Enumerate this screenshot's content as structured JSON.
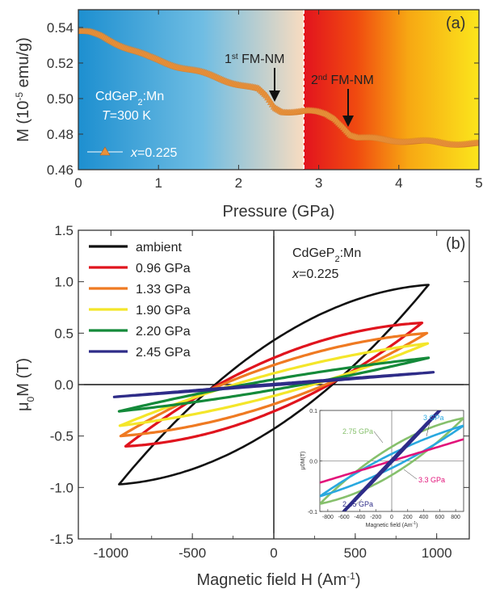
{
  "chart_data": [
    {
      "panel": "(a)",
      "type": "scatter",
      "xlabel": "Pressure (GPa)",
      "ylabel_main": "M (10",
      "ylabel_sup": "-5",
      "ylabel_tail": " emu/g)",
      "xlim": [
        0,
        5
      ],
      "ylim": [
        0.46,
        0.55
      ],
      "xticks": [
        "0",
        "1",
        "2",
        "3",
        "4",
        "5"
      ],
      "yticks": [
        "0.46",
        "0.48",
        "0.50",
        "0.52",
        "0.54"
      ],
      "sample_name": "CdGeP",
      "sample_sub": "2",
      "sample_dopant": ":Mn",
      "temperature_var": "T",
      "temperature_val": "=300 K",
      "legend_var": "x",
      "legend_val": "=0.225",
      "marker_color": "#e8913a",
      "transition_1": {
        "num": "1",
        "sup": "st",
        "label": " FM-NM",
        "pressure": 2.43
      },
      "transition_2": {
        "num": "2",
        "sup": "nd",
        "label": " FM-NM",
        "pressure": 3.37
      },
      "phase_boundary": 2.82,
      "x": [
        0.0,
        0.15,
        0.3,
        0.45,
        0.6,
        0.75,
        0.9,
        1.05,
        1.2,
        1.35,
        1.5,
        1.65,
        1.8,
        1.95,
        2.1,
        2.25,
        2.35,
        2.45,
        2.55,
        2.7,
        2.85,
        3.0,
        3.1,
        3.2,
        3.3,
        3.4,
        3.5,
        3.6,
        3.8,
        4.0,
        4.2,
        4.4,
        4.6,
        4.8,
        5.0
      ],
      "y": [
        0.538,
        0.537,
        0.535,
        0.532,
        0.529,
        0.526,
        0.523,
        0.521,
        0.519,
        0.517,
        0.515,
        0.513,
        0.511,
        0.509,
        0.507,
        0.505,
        0.501,
        0.495,
        0.493,
        0.493,
        0.493,
        0.492,
        0.491,
        0.489,
        0.485,
        0.48,
        0.478,
        0.4775,
        0.477,
        0.4765,
        0.476,
        0.4755,
        0.475,
        0.4748,
        0.4745
      ]
    },
    {
      "panel": "(b)",
      "type": "line",
      "xlabel": "Magnetic field H (Am",
      "xlabel_sup": "-1",
      "xlabel_tail": ")",
      "ylabel_main": "μ",
      "ylabel_sub": "0",
      "ylabel_tail": "M (T)",
      "xlim": [
        -1200,
        1200
      ],
      "ylim": [
        -1.5,
        1.5
      ],
      "xticks": [
        "-1000",
        "-500",
        "0",
        "500",
        "1000"
      ],
      "yticks": [
        "-1.5",
        "-1.0",
        "-0.5",
        "0.0",
        "0.5",
        "1.0",
        "1.5"
      ],
      "sample_name": "CdGeP",
      "sample_sub": "2",
      "sample_dopant": ":Mn",
      "composition_var": "x",
      "composition_val": "=0.225",
      "series": [
        {
          "name": "ambient",
          "color": "#111111",
          "hmax": 950,
          "mtip": 0.97,
          "hc": 380,
          "mr": 0.43
        },
        {
          "name": "0.96 GPa",
          "color": "#e0141e",
          "hmax": 910,
          "mtip": 0.6,
          "hc": 330,
          "mr": 0.26
        },
        {
          "name": "1.33 GPa",
          "color": "#ef7a22",
          "hmax": 940,
          "mtip": 0.5,
          "hc": 300,
          "mr": 0.19
        },
        {
          "name": "1.90 GPa",
          "color": "#f4e62a",
          "hmax": 945,
          "mtip": 0.4,
          "hc": 230,
          "mr": 0.11
        },
        {
          "name": "2.20 GPa",
          "color": "#148a3a",
          "hmax": 950,
          "mtip": 0.26,
          "hc": 170,
          "mr": 0.05
        },
        {
          "name": "2.45 GPa",
          "color": "#2e2c88",
          "hmax": 980,
          "mtip": 0.12,
          "hc": 30,
          "mr": 0.005
        }
      ],
      "inset": {
        "xlabel": "Magnetic field (Am",
        "xlabel_sup": "-1",
        "xlabel_tail": ")",
        "ylabel": "μ0M(T)",
        "xlim": [
          -900,
          900
        ],
        "ylim": [
          -0.1,
          0.1
        ],
        "xticks": [
          "-800",
          "-600",
          "-400",
          "-200",
          "0",
          "200",
          "400",
          "600",
          "800"
        ],
        "yticks": [
          "-0.1",
          "0.0",
          "0.1"
        ],
        "series": [
          {
            "name": "2.75 GPa",
            "color": "#86c06c",
            "hmax": 900,
            "mtip": 0.085,
            "hc": 150,
            "mr": 0.028
          },
          {
            "name": "3 GPa",
            "color": "#29a8df",
            "hmax": 900,
            "mtip": 0.07,
            "hc": 90,
            "mr": 0.014
          },
          {
            "name": "3.3 GPa",
            "color": "#e2137a",
            "hmax": 900,
            "mtip": 0.043,
            "hc": 0,
            "mr": 0.0
          },
          {
            "name": "2.45 GPa",
            "color": "#2e2c88",
            "hmax": 900,
            "mtip": 0.15,
            "hc": 20,
            "mr": 0.003
          }
        ]
      }
    }
  ]
}
